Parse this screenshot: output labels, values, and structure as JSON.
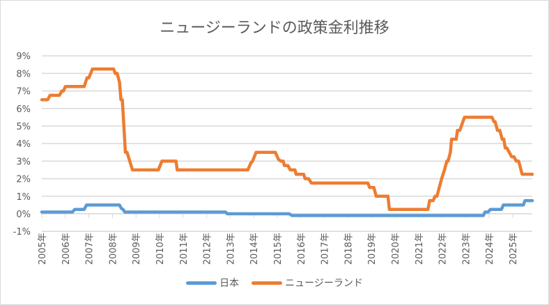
{
  "chart_data": {
    "type": "line",
    "title": "ニュージーランドの政策金利推移",
    "xlabel": "",
    "ylabel": "",
    "ylim": [
      -1,
      9
    ],
    "yticks": [
      "-1%",
      "0%",
      "1%",
      "2%",
      "3%",
      "4%",
      "5%",
      "6%",
      "7%",
      "8%",
      "9%"
    ],
    "xticks": [
      "2005年",
      "2006年",
      "2007年",
      "2008年",
      "2009年",
      "2010年",
      "2011年",
      "2012年",
      "2013年",
      "2014年",
      "2015年",
      "2016年",
      "2017年",
      "2018年",
      "2019年",
      "2020年",
      "2021年",
      "2022年",
      "2023年",
      "2024年",
      "2025年"
    ],
    "grid": true,
    "legend_position": "bottom",
    "series": [
      {
        "name": "日本",
        "color": "#5b9bd5",
        "points": [
          [
            2005.0,
            0.1
          ],
          [
            2006.3,
            0.1
          ],
          [
            2006.4,
            0.25
          ],
          [
            2006.8,
            0.25
          ],
          [
            2006.9,
            0.5
          ],
          [
            2008.3,
            0.5
          ],
          [
            2008.38,
            0.3
          ],
          [
            2008.45,
            0.25
          ],
          [
            2008.52,
            0.1
          ],
          [
            2012.8,
            0.1
          ],
          [
            2012.88,
            0.0
          ],
          [
            2015.5,
            0.0
          ],
          [
            2015.62,
            -0.1
          ],
          [
            2023.75,
            -0.1
          ],
          [
            2023.82,
            0.1
          ],
          [
            2023.95,
            0.1
          ],
          [
            2024.05,
            0.25
          ],
          [
            2024.52,
            0.25
          ],
          [
            2024.6,
            0.5
          ],
          [
            2025.45,
            0.5
          ],
          [
            2025.52,
            0.75
          ],
          [
            2025.83,
            0.75
          ]
        ]
      },
      {
        "name": "ニュージーランド",
        "color": "#ed7d31",
        "points": [
          [
            2005.0,
            6.5
          ],
          [
            2005.25,
            6.5
          ],
          [
            2005.35,
            6.75
          ],
          [
            2005.75,
            6.75
          ],
          [
            2005.85,
            7.0
          ],
          [
            2005.92,
            7.0
          ],
          [
            2006.0,
            7.25
          ],
          [
            2006.8,
            7.25
          ],
          [
            2006.92,
            7.75
          ],
          [
            2007.0,
            7.75
          ],
          [
            2007.15,
            8.25
          ],
          [
            2008.05,
            8.25
          ],
          [
            2008.12,
            8.0
          ],
          [
            2008.2,
            8.0
          ],
          [
            2008.3,
            7.5
          ],
          [
            2008.36,
            6.5
          ],
          [
            2008.42,
            6.5
          ],
          [
            2008.55,
            3.5
          ],
          [
            2008.62,
            3.5
          ],
          [
            2008.85,
            2.5
          ],
          [
            2009.95,
            2.5
          ],
          [
            2010.1,
            3.0
          ],
          [
            2010.7,
            3.0
          ],
          [
            2010.75,
            2.5
          ],
          [
            2013.75,
            2.5
          ],
          [
            2013.88,
            2.9
          ],
          [
            2013.95,
            3.0
          ],
          [
            2014.1,
            3.5
          ],
          [
            2014.92,
            3.5
          ],
          [
            2015.05,
            3.1
          ],
          [
            2015.15,
            3.0
          ],
          [
            2015.25,
            3.0
          ],
          [
            2015.3,
            2.75
          ],
          [
            2015.45,
            2.75
          ],
          [
            2015.55,
            2.5
          ],
          [
            2015.75,
            2.5
          ],
          [
            2015.8,
            2.25
          ],
          [
            2016.12,
            2.25
          ],
          [
            2016.18,
            2.0
          ],
          [
            2016.33,
            2.0
          ],
          [
            2016.45,
            1.75
          ],
          [
            2018.85,
            1.75
          ],
          [
            2018.92,
            1.5
          ],
          [
            2019.1,
            1.5
          ],
          [
            2019.2,
            1.0
          ],
          [
            2019.7,
            1.0
          ],
          [
            2019.76,
            0.25
          ],
          [
            2021.4,
            0.25
          ],
          [
            2021.47,
            0.75
          ],
          [
            2021.62,
            0.75
          ],
          [
            2021.7,
            1.0
          ],
          [
            2021.78,
            1.0
          ],
          [
            2021.88,
            1.5
          ],
          [
            2021.98,
            2.0
          ],
          [
            2022.1,
            2.5
          ],
          [
            2022.2,
            3.0
          ],
          [
            2022.25,
            3.0
          ],
          [
            2022.35,
            3.5
          ],
          [
            2022.4,
            4.25
          ],
          [
            2022.6,
            4.25
          ],
          [
            2022.65,
            4.75
          ],
          [
            2022.75,
            4.75
          ],
          [
            2022.95,
            5.5
          ],
          [
            2024.12,
            5.5
          ],
          [
            2024.2,
            5.25
          ],
          [
            2024.25,
            5.25
          ],
          [
            2024.35,
            4.75
          ],
          [
            2024.45,
            4.75
          ],
          [
            2024.55,
            4.25
          ],
          [
            2024.62,
            4.25
          ],
          [
            2024.68,
            3.75
          ],
          [
            2024.75,
            3.75
          ],
          [
            2024.95,
            3.25
          ],
          [
            2025.05,
            3.25
          ],
          [
            2025.15,
            3.0
          ],
          [
            2025.25,
            3.0
          ],
          [
            2025.4,
            2.25
          ],
          [
            2025.83,
            2.25
          ]
        ]
      }
    ]
  }
}
